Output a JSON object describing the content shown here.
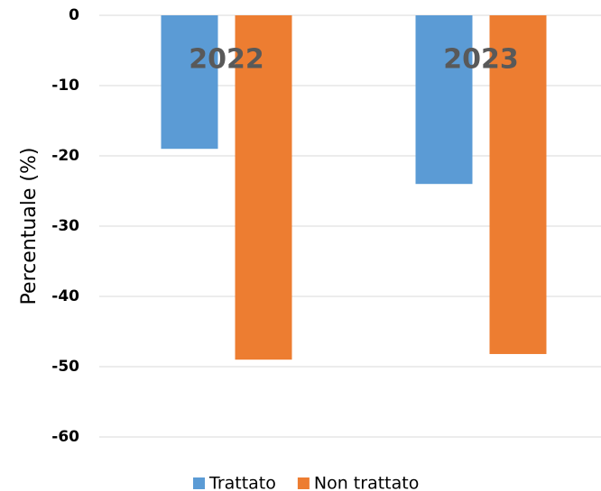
{
  "chart_data": {
    "type": "bar",
    "y_label": "Percentuale (%)",
    "categories": [
      "2022",
      "2023"
    ],
    "series": [
      {
        "name": "Trattato",
        "color": "#5b9bd5",
        "values": [
          -19,
          -24
        ]
      },
      {
        "name": "Non trattato",
        "color": "#ed7d31",
        "values": [
          -49,
          -48.2
        ]
      }
    ],
    "ylim": [
      -60,
      0
    ],
    "yticks": [
      0,
      -10,
      -20,
      -30,
      -40,
      -50,
      -60
    ],
    "grid": true,
    "legend": "bottom"
  }
}
